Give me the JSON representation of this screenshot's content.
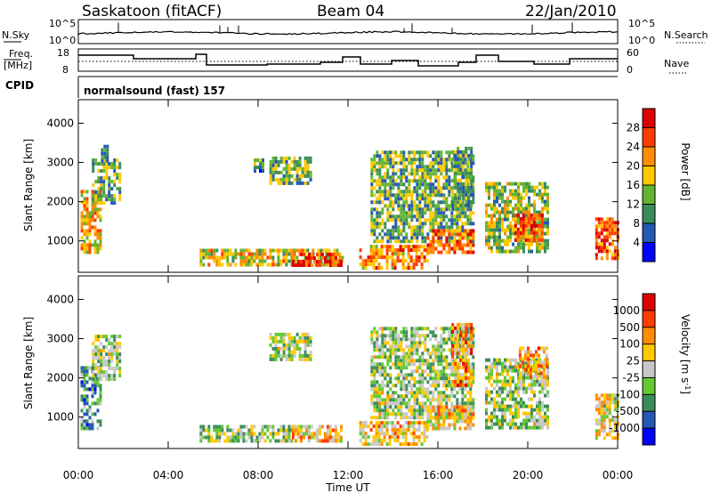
{
  "header": {
    "station": "Saskatoon (fitACF)",
    "beam": "Beam 04",
    "date": "22/Jan/2010"
  },
  "info_panels": {
    "nsky_label": "N.Sky",
    "nsearch_label": "N.Search",
    "nsky_ticks": [
      "10^5",
      "10^0"
    ],
    "freq_label_top": "Freq.",
    "freq_label_bottom": "[MHz]",
    "freq_ticks": [
      "18",
      "8"
    ],
    "nave_label": "Nave",
    "nave_ticks": [
      "60",
      "0"
    ],
    "cpid_label": "CPID",
    "cpid_value": "normalsound (fast) 157"
  },
  "chart_data": [
    {
      "type": "heatmap",
      "panel": "power",
      "ylabel": "Slant Range [km]",
      "xlabel": "Time UT",
      "ylim": [
        200,
        4600
      ],
      "xlim": [
        0,
        24
      ],
      "y_ticks": [
        "1000",
        "2000",
        "3000",
        "4000"
      ],
      "x_ticks": [
        "00:00",
        "04:00",
        "08:00",
        "12:00",
        "16:00",
        "20:00",
        "00:00"
      ],
      "colorbar_label": "Power [dB]",
      "colorbar_ticks": [
        "4",
        "8",
        "12",
        "16",
        "20",
        "24",
        "28"
      ],
      "colorbar_colors": [
        "#0000ff",
        "#2458b4",
        "#3c8c5a",
        "#64b432",
        "#ffc800",
        "#ff8c00",
        "#ff3c00",
        "#dc0000"
      ],
      "regions": [
        {
          "t": [
            0.1,
            1.0
          ],
          "r": [
            700,
            2300
          ],
          "level": 0.6
        },
        {
          "t": [
            0.6,
            1.9
          ],
          "r": [
            2000,
            3100
          ],
          "level": 0.4
        },
        {
          "t": [
            1.0,
            1.3
          ],
          "r": [
            3000,
            3450
          ],
          "level": 0.3
        },
        {
          "t": [
            5.4,
            11.7
          ],
          "r": [
            380,
            800
          ],
          "level": 0.55
        },
        {
          "t": [
            9.5,
            11.7
          ],
          "r": [
            380,
            700
          ],
          "level": 0.85
        },
        {
          "t": [
            7.8,
            8.2
          ],
          "r": [
            2800,
            3100
          ],
          "level": 0.3
        },
        {
          "t": [
            8.5,
            10.3
          ],
          "r": [
            2500,
            3150
          ],
          "level": 0.4
        },
        {
          "t": [
            12.5,
            15.5
          ],
          "r": [
            300,
            900
          ],
          "level": 0.7
        },
        {
          "t": [
            13.0,
            17.6
          ],
          "r": [
            1000,
            3300
          ],
          "level": 0.4
        },
        {
          "t": [
            15.5,
            17.6
          ],
          "r": [
            700,
            1300
          ],
          "level": 0.75
        },
        {
          "t": [
            16.6,
            17.5
          ],
          "r": [
            1800,
            3400
          ],
          "level": 0.35
        },
        {
          "t": [
            18.1,
            20.9
          ],
          "r": [
            700,
            2500
          ],
          "level": 0.45
        },
        {
          "t": [
            19.4,
            20.6
          ],
          "r": [
            1000,
            1700
          ],
          "level": 0.8
        },
        {
          "t": [
            23.0,
            24.0
          ],
          "r": [
            600,
            1600
          ],
          "level": 0.8
        }
      ]
    },
    {
      "type": "heatmap",
      "panel": "velocity",
      "ylabel": "Slant Range [km]",
      "xlabel": "Time UT",
      "ylim": [
        200,
        4600
      ],
      "xlim": [
        0,
        24
      ],
      "y_ticks": [
        "1000",
        "2000",
        "3000",
        "4000"
      ],
      "x_ticks": [
        "00:00",
        "04:00",
        "08:00",
        "12:00",
        "16:00",
        "20:00",
        "00:00"
      ],
      "colorbar_label": "Velocity [m s-1]",
      "colorbar_ticks": [
        "1000",
        "500",
        "100",
        "25",
        "-25",
        "-100",
        "-500",
        "-1000"
      ],
      "colorbar_colors": [
        "#0000ff",
        "#2458b4",
        "#3c8c5a",
        "#64c832",
        "#c8c8c8",
        "#ffc800",
        "#ff8c00",
        "#ff3c00",
        "#dc0000"
      ],
      "regions": [
        {
          "t": [
            0.1,
            1.0
          ],
          "r": [
            700,
            2300
          ],
          "level": 0.3
        },
        {
          "t": [
            0.6,
            1.9
          ],
          "r": [
            2000,
            3100
          ],
          "level": 0.45
        },
        {
          "t": [
            5.4,
            9.5
          ],
          "r": [
            380,
            800
          ],
          "level": 0.45
        },
        {
          "t": [
            9.5,
            11.7
          ],
          "r": [
            380,
            800
          ],
          "level": 0.6
        },
        {
          "t": [
            8.5,
            10.3
          ],
          "r": [
            2500,
            3150
          ],
          "level": 0.45
        },
        {
          "t": [
            12.5,
            15.5
          ],
          "r": [
            300,
            900
          ],
          "level": 0.6
        },
        {
          "t": [
            13.0,
            17.6
          ],
          "r": [
            1000,
            3300
          ],
          "level": 0.45
        },
        {
          "t": [
            15.5,
            17.6
          ],
          "r": [
            700,
            1300
          ],
          "level": 0.6
        },
        {
          "t": [
            16.6,
            17.5
          ],
          "r": [
            1800,
            3400
          ],
          "level": 0.7
        },
        {
          "t": [
            18.1,
            20.9
          ],
          "r": [
            700,
            2500
          ],
          "level": 0.45
        },
        {
          "t": [
            19.6,
            20.8
          ],
          "r": [
            2000,
            2800
          ],
          "level": 0.7
        },
        {
          "t": [
            23.0,
            24.0
          ],
          "r": [
            500,
            1600
          ],
          "level": 0.55
        }
      ]
    }
  ]
}
